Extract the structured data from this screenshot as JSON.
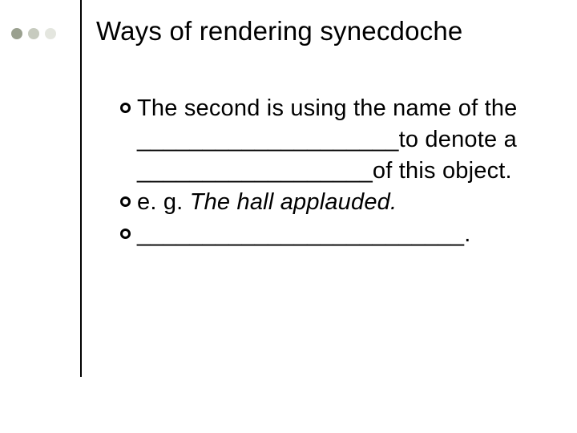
{
  "decor": {
    "dot_colors": [
      "#9aa08f",
      "#c7cbbf",
      "#e4e6df"
    ],
    "vline_color": "#000000"
  },
  "title": "Ways of rendering synecdoche",
  "title_fontsize": 33,
  "body_fontsize": 29,
  "text_color": "#000000",
  "background_color": "#ffffff",
  "items": [
    {
      "kind": "plain",
      "text": "The second is using the name of the ____________________to denote a __________________of this object."
    },
    {
      "kind": "eg",
      "prefix": "e. g. ",
      "example": "The hall applauded."
    },
    {
      "kind": "plain",
      "text": "_________________________."
    }
  ]
}
